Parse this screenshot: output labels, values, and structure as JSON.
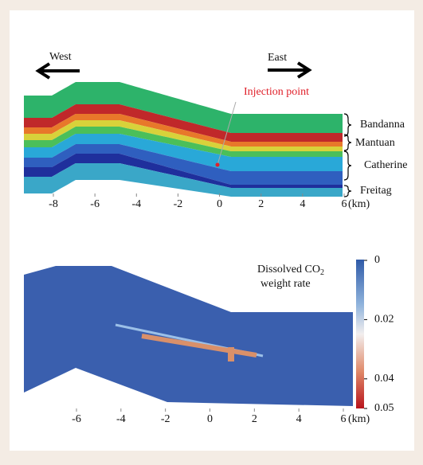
{
  "top_panel": {
    "west": "West",
    "east": "East",
    "injection": "Injection point",
    "formations": [
      "Bandanna",
      "Mantuan",
      "Catherine",
      "Freitag"
    ],
    "xticks": [
      -8,
      -6,
      -4,
      -2,
      0,
      2,
      4,
      6
    ],
    "xlim": [
      -8,
      6
    ],
    "unit": "(km)"
  },
  "bottom_panel": {
    "colorbar_title": "Dissolved CO",
    "colorbar_subscript": "2",
    "colorbar_title_2": "weight rate",
    "colorbar_ticks": [
      0,
      0.02,
      0.04,
      0.05
    ],
    "colorbar_lim": [
      0,
      0.05
    ],
    "xticks": [
      -6,
      -4,
      -2,
      0,
      2,
      4,
      6
    ],
    "xlim": [
      -6,
      6
    ],
    "unit": "(km)"
  }
}
